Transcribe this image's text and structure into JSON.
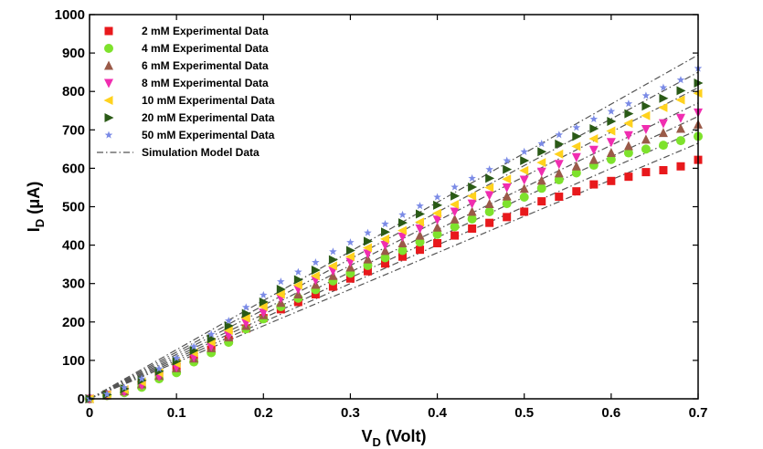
{
  "chart_data": {
    "type": "scatter",
    "xlim": [
      0,
      0.7
    ],
    "ylim": [
      0,
      1000
    ],
    "x_ticks": [
      "0",
      "0.1",
      "0.2",
      "0.3",
      "0.4",
      "0.5",
      "0.6",
      "0.7"
    ],
    "y_ticks": [
      "0",
      "100",
      "200",
      "300",
      "400",
      "500",
      "600",
      "700",
      "800",
      "900",
      "1000"
    ],
    "x_tick_values": [
      0,
      0.1,
      0.2,
      0.3,
      0.4,
      0.5,
      0.6,
      0.7
    ],
    "y_tick_values": [
      0,
      100,
      200,
      300,
      400,
      500,
      600,
      700,
      800,
      900,
      1000
    ],
    "xlabel": {
      "main": "V",
      "sub": "D",
      "rest": " (Volt)"
    },
    "ylabel": {
      "main": "I",
      "sub": "D",
      "rest": " (μA)"
    },
    "grid": false,
    "legend_position": "top-left",
    "x": [
      0,
      0.02,
      0.04,
      0.06,
      0.08,
      0.1,
      0.12,
      0.14,
      0.16,
      0.18,
      0.2,
      0.22,
      0.24,
      0.26,
      0.28,
      0.3,
      0.32,
      0.34,
      0.36,
      0.38,
      0.4,
      0.42,
      0.44,
      0.46,
      0.48,
      0.5,
      0.52,
      0.54,
      0.56,
      0.58,
      0.6,
      0.62,
      0.64,
      0.66,
      0.68,
      0.7
    ],
    "series": [
      {
        "name": "2 mM Experimental Data",
        "marker": "square",
        "color": "#e8191c",
        "values": [
          0,
          10,
          22,
          38,
          58,
          82,
          103,
          128,
          152,
          183,
          210,
          233,
          252,
          272,
          292,
          313,
          332,
          352,
          370,
          388,
          405,
          425,
          443,
          458,
          473,
          487,
          514,
          526,
          540,
          558,
          567,
          578,
          590,
          595,
          605,
          622
        ]
      },
      {
        "name": "4 mM Experimental Data",
        "marker": "circle",
        "color": "#7ee22c",
        "values": [
          0,
          8,
          16,
          30,
          52,
          68,
          96,
          120,
          147,
          182,
          208,
          240,
          262,
          284,
          307,
          327,
          347,
          367,
          386,
          408,
          428,
          448,
          468,
          487,
          508,
          525,
          548,
          570,
          588,
          608,
          623,
          640,
          650,
          660,
          672,
          683
        ]
      },
      {
        "name": "6 mM Experimental Data",
        "marker": "triangle-up",
        "color": "#9a5a48",
        "values": [
          0,
          9,
          20,
          38,
          60,
          80,
          105,
          132,
          160,
          190,
          218,
          250,
          272,
          297,
          320,
          342,
          363,
          385,
          405,
          425,
          446,
          467,
          487,
          507,
          527,
          547,
          568,
          587,
          605,
          622,
          640,
          658,
          675,
          692,
          703,
          714
        ]
      },
      {
        "name": "8 mM Experimental Data",
        "marker": "triangle-down",
        "color": "#f02db0",
        "values": [
          0,
          9,
          18,
          35,
          58,
          82,
          108,
          136,
          165,
          197,
          224,
          262,
          285,
          309,
          333,
          356,
          378,
          400,
          422,
          443,
          466,
          487,
          508,
          530,
          550,
          570,
          591,
          611,
          629,
          648,
          668,
          686,
          702,
          717,
          731,
          745
        ]
      },
      {
        "name": "10 mM Experimental Data",
        "marker": "triangle-left",
        "color": "#ffd21e",
        "values": [
          0,
          10,
          24,
          44,
          68,
          92,
          120,
          148,
          178,
          210,
          240,
          272,
          296,
          320,
          346,
          370,
          393,
          416,
          438,
          460,
          483,
          506,
          528,
          550,
          572,
          594,
          615,
          637,
          657,
          677,
          697,
          717,
          737,
          758,
          778,
          795
        ]
      },
      {
        "name": "20 mM Experimental Data",
        "marker": "triangle-right",
        "color": "#2a5a16",
        "values": [
          0,
          11,
          26,
          48,
          72,
          98,
          126,
          156,
          190,
          222,
          252,
          285,
          310,
          335,
          362,
          386,
          410,
          434,
          458,
          481,
          504,
          528,
          551,
          574,
          597,
          620,
          643,
          663,
          683,
          703,
          722,
          742,
          762,
          782,
          802,
          822
        ]
      },
      {
        "name": "50 mM Experimental Data",
        "marker": "star",
        "color": "#7b8be6",
        "values": [
          0,
          12,
          29,
          52,
          78,
          106,
          136,
          168,
          203,
          238,
          270,
          305,
          330,
          355,
          383,
          407,
          432,
          455,
          479,
          502,
          525,
          551,
          574,
          597,
          620,
          643,
          664,
          687,
          706,
          728,
          748,
          768,
          789,
          810,
          830,
          860
        ]
      }
    ],
    "simulation": {
      "name": "Simulation Model Data",
      "style": "dash-dot",
      "color": "#555555",
      "x": [
        0,
        0.7
      ],
      "lines": [
        [
          0,
          665
        ],
        [
          0,
          700
        ],
        [
          0,
          735
        ],
        [
          0,
          770
        ],
        [
          0,
          810
        ],
        [
          0,
          850
        ],
        [
          0,
          895
        ]
      ]
    }
  }
}
